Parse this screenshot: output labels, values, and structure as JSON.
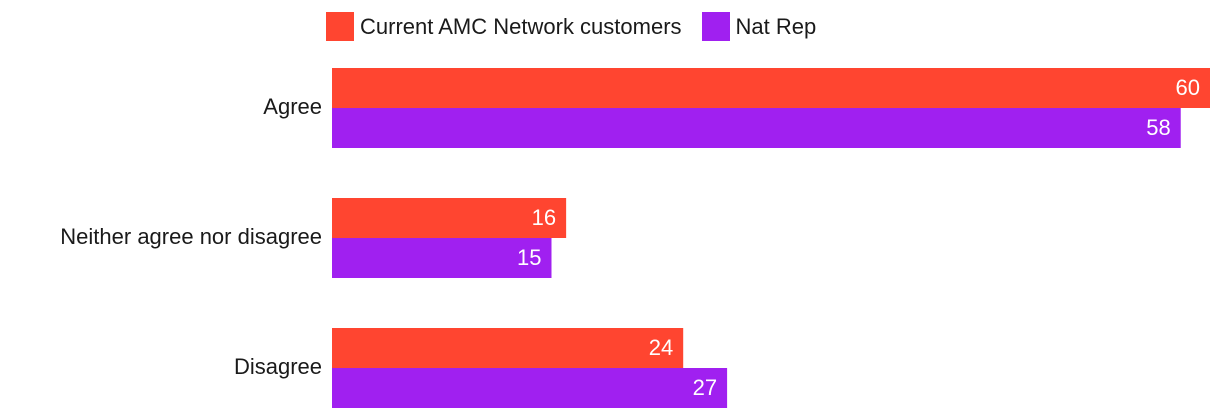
{
  "chart_data": {
    "type": "bar",
    "orientation": "horizontal",
    "categories": [
      "Agree",
      "Neither agree nor disagree",
      "Disagree"
    ],
    "series": [
      {
        "name": "Current AMC Network customers",
        "values": [
          60,
          16,
          24
        ],
        "color": "#ff4530"
      },
      {
        "name": "Nat Rep",
        "values": [
          58,
          15,
          27
        ],
        "color": "#a020f0"
      }
    ],
    "xlim": [
      0,
      60
    ],
    "grid": false,
    "legend_position": "top",
    "data_labels": true
  }
}
